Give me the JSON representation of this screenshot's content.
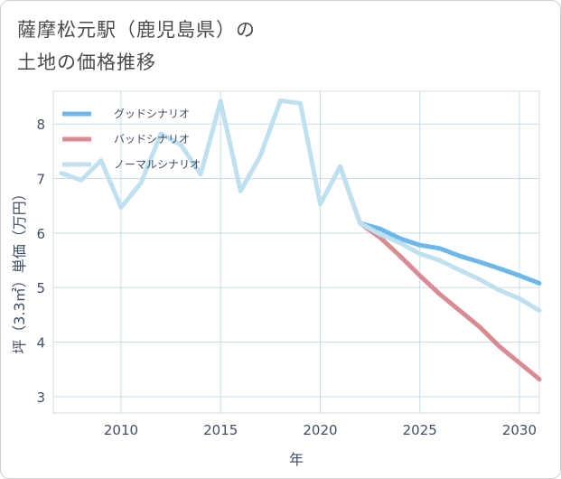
{
  "chart_data": {
    "type": "line",
    "title_line1": "薩摩松元駅（鹿児島県）の",
    "title_line2": "土地の価格推移",
    "xlabel": "年",
    "ylabel": "坪（3.3㎡）単価（万円）",
    "xlim": [
      2006.6,
      2031
    ],
    "ylim": [
      2.7,
      8.6
    ],
    "x_ticks": [
      2010,
      2015,
      2020,
      2025,
      2030
    ],
    "y_ticks": [
      3,
      4,
      5,
      6,
      7,
      8
    ],
    "legend_position": "top-left",
    "series": [
      {
        "name": "グッドシナリオ",
        "color": "#6cb8ea",
        "x": [
          2022,
          2023,
          2024,
          2025,
          2026,
          2027,
          2028,
          2029,
          2030,
          2031
        ],
        "values": [
          6.18,
          6.08,
          5.9,
          5.78,
          5.72,
          5.58,
          5.47,
          5.35,
          5.22,
          5.08
        ]
      },
      {
        "name": "バッドシナリオ",
        "color": "#d98b93",
        "x": [
          2021,
          2022,
          2023,
          2024,
          2025,
          2026,
          2027,
          2028,
          2029,
          2030,
          2031
        ],
        "values": [
          7.22,
          6.18,
          5.92,
          5.58,
          5.22,
          4.88,
          4.58,
          4.28,
          3.92,
          3.62,
          3.32
        ]
      },
      {
        "name": "ノーマルシナリオ",
        "color": "#bfe0ee",
        "x": [
          2007,
          2008,
          2009,
          2010,
          2011,
          2012,
          2013,
          2014,
          2015,
          2016,
          2017,
          2018,
          2019,
          2020,
          2021,
          2022,
          2023,
          2024,
          2025,
          2026,
          2027,
          2028,
          2029,
          2030,
          2031
        ],
        "values": [
          7.1,
          6.97,
          7.33,
          6.47,
          6.92,
          7.82,
          7.62,
          7.08,
          8.42,
          6.77,
          7.42,
          8.43,
          8.38,
          6.53,
          7.22,
          6.18,
          5.98,
          5.82,
          5.62,
          5.5,
          5.32,
          5.15,
          4.95,
          4.8,
          4.58
        ]
      }
    ]
  }
}
